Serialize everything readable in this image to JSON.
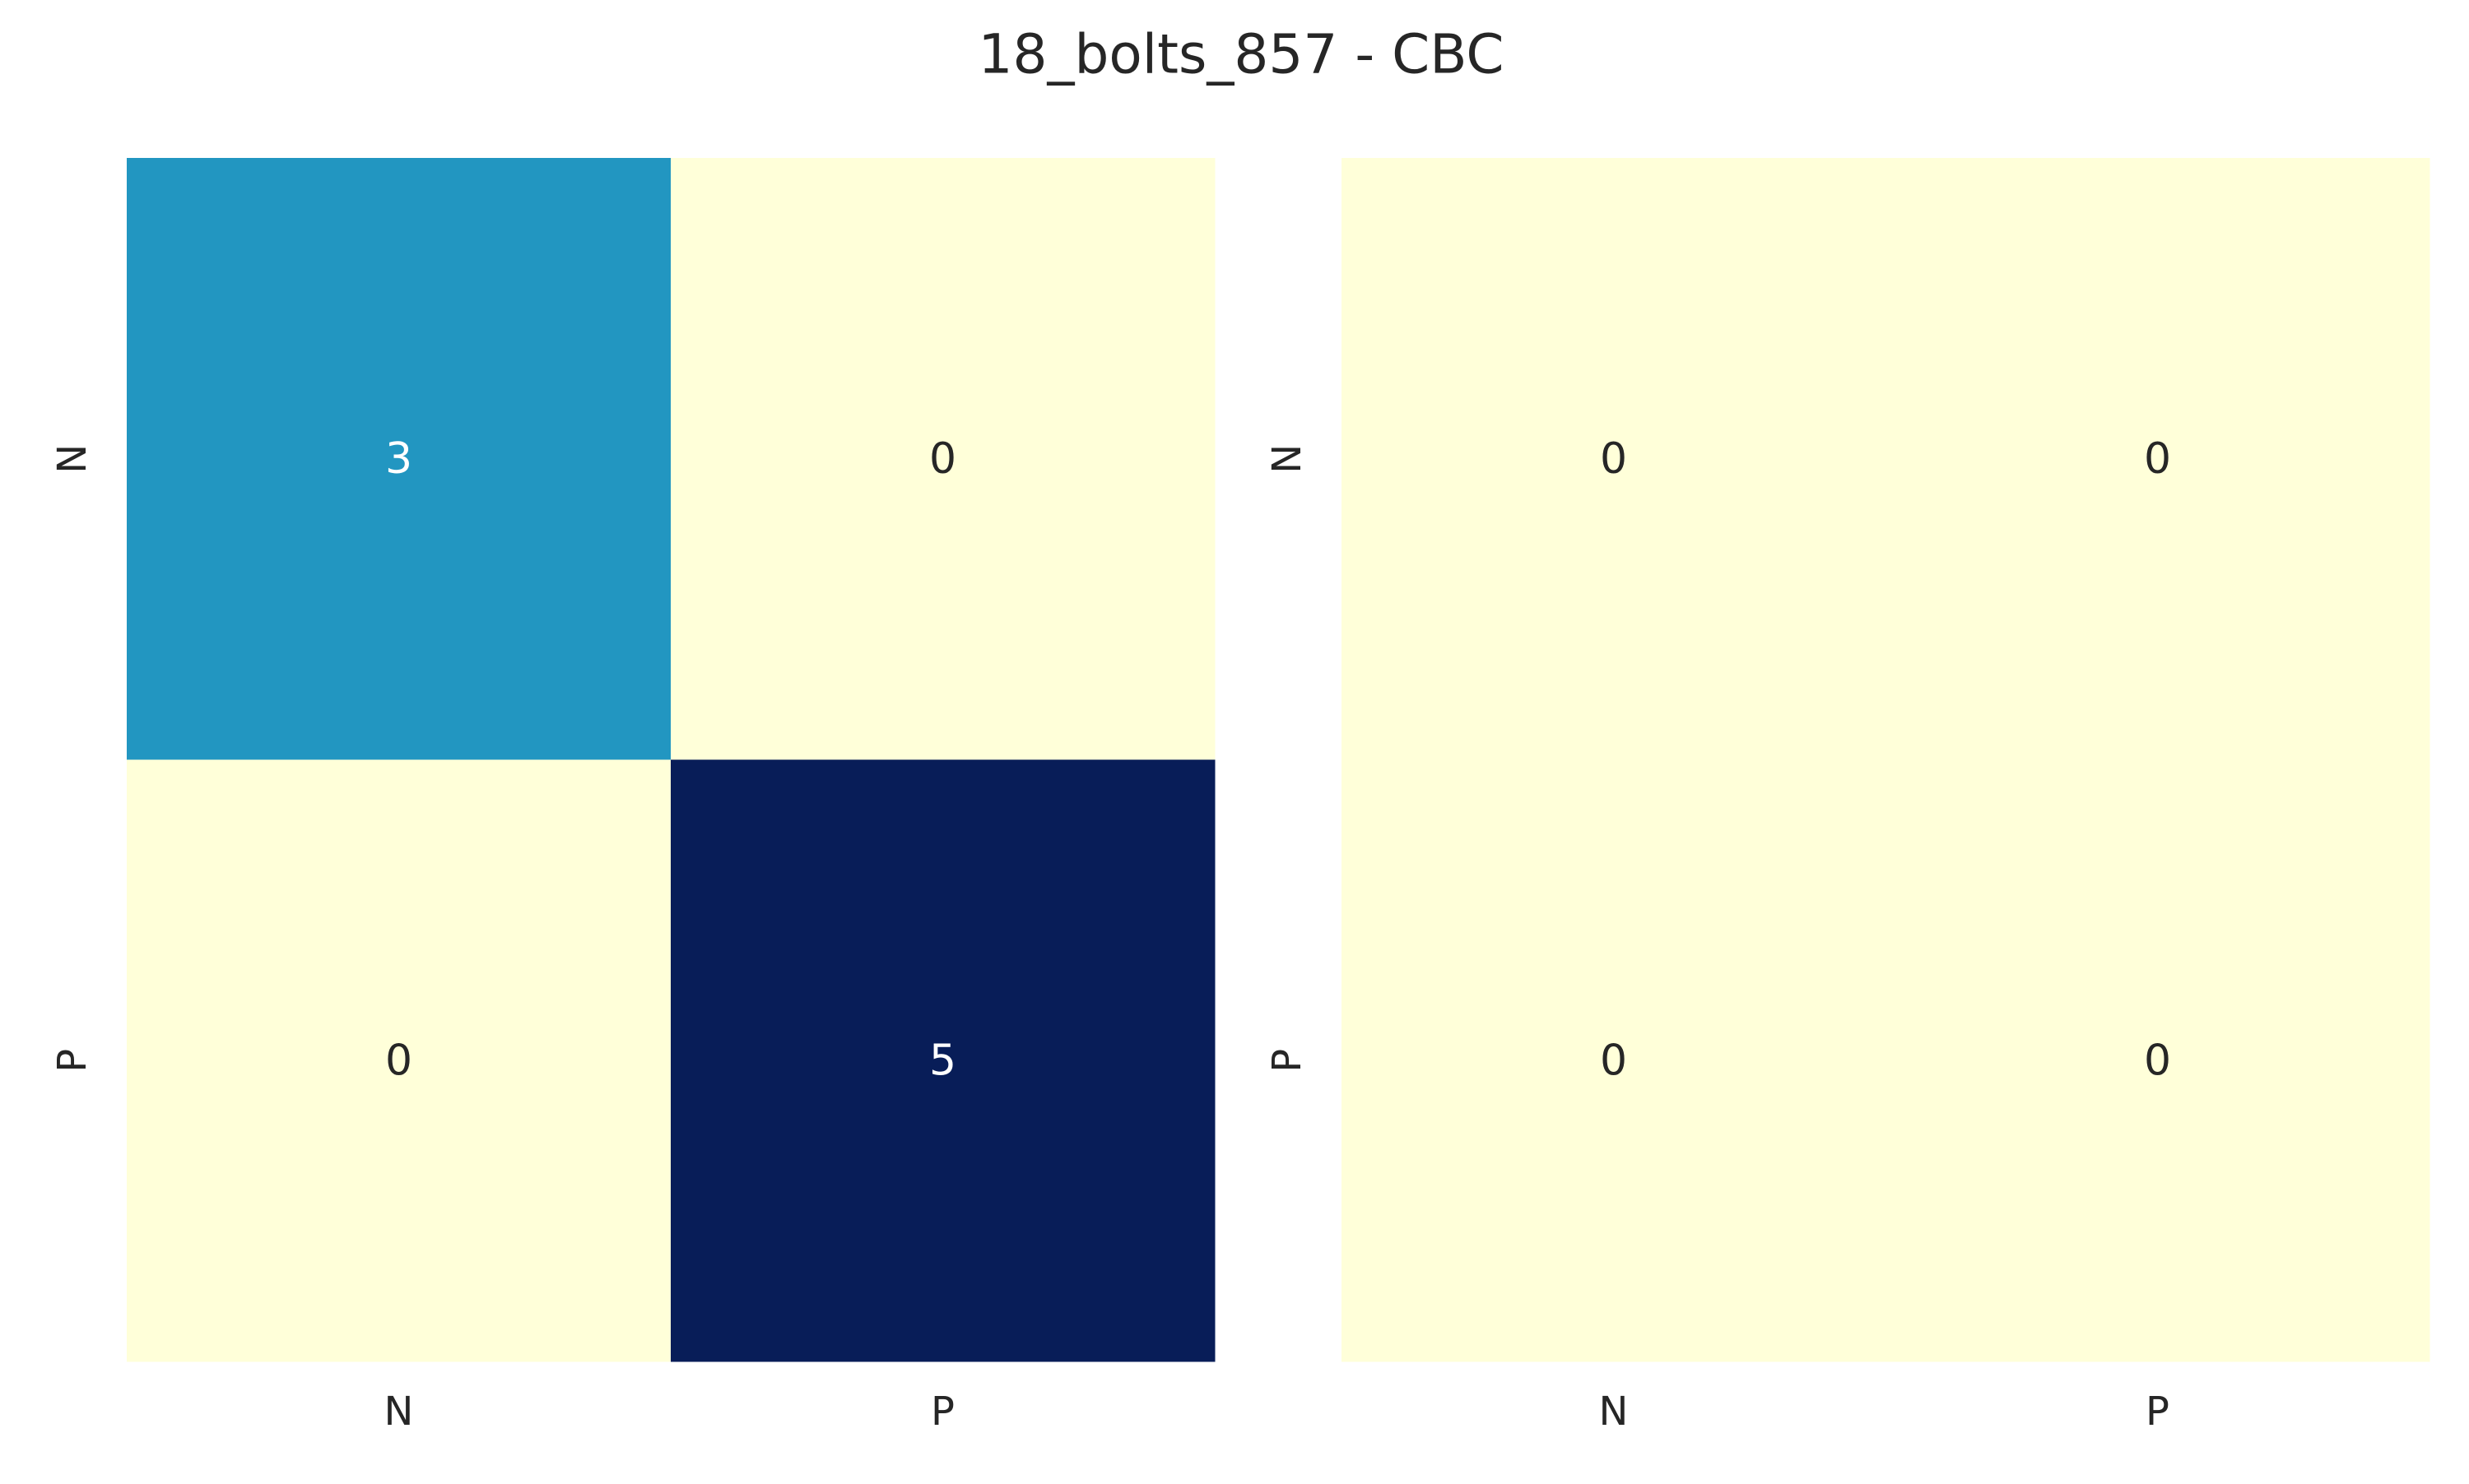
{
  "figure": {
    "title": "18_bolts_857 - CBC",
    "background": "#ffffff"
  },
  "chart_data": [
    {
      "type": "heatmap",
      "rows": [
        "N",
        "P"
      ],
      "columns": [
        "N",
        "P"
      ],
      "values": [
        [
          3,
          0
        ],
        [
          0,
          5
        ]
      ],
      "colormap": "YlGnBu",
      "value_range": [
        0,
        5
      ],
      "colorbar": false,
      "annotations": true,
      "cell_colors": [
        [
          "#2296c1",
          "#ffffd9"
        ],
        [
          "#ffffd9",
          "#081d58"
        ]
      ]
    },
    {
      "type": "heatmap",
      "rows": [
        "N",
        "P"
      ],
      "columns": [
        "N",
        "P"
      ],
      "values": [
        [
          0,
          0
        ],
        [
          0,
          0
        ]
      ],
      "colormap": "YlGnBu",
      "colorbar": false,
      "annotations": true,
      "cell_colors": [
        [
          "#ffffd9",
          "#ffffd9"
        ],
        [
          "#ffffd9",
          "#ffffd9"
        ]
      ]
    }
  ],
  "colors": {
    "low": "#ffffd9",
    "mid": "#2296c1",
    "high": "#081d58",
    "text_dark": "#262626",
    "text_light": "#ffffff"
  }
}
